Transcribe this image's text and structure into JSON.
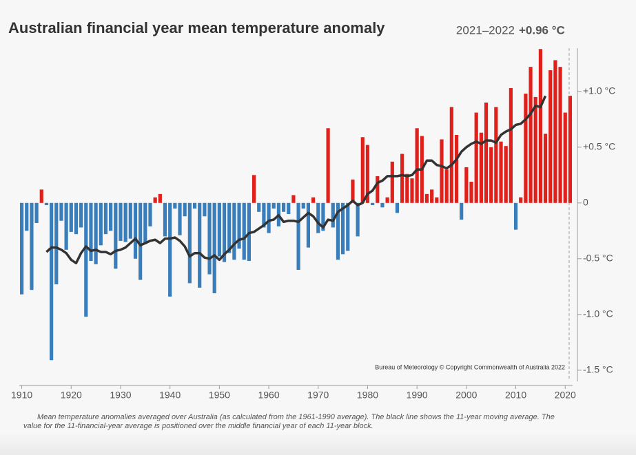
{
  "chart_data": {
    "type": "bar",
    "title": "Australian financial year mean temperature anomaly",
    "latest_period": "2021–2022",
    "latest_value_label": "+0.96 °C",
    "credit": "Bureau of Meteorology © Copyright Commonwealth of Australia 2022",
    "caption": "Mean temperature anomalies averaged over Australia (as calculated from the 1961-1990 average). The black line shows the 11-year moving average. The value for the 11-financial-year average is positioned over the middle financial year of each 11-year block.",
    "x": [
      1910,
      1911,
      1912,
      1913,
      1914,
      1915,
      1916,
      1917,
      1918,
      1919,
      1920,
      1921,
      1922,
      1923,
      1924,
      1925,
      1926,
      1927,
      1928,
      1929,
      1930,
      1931,
      1932,
      1933,
      1934,
      1935,
      1936,
      1937,
      1938,
      1939,
      1940,
      1941,
      1942,
      1943,
      1944,
      1945,
      1946,
      1947,
      1948,
      1949,
      1950,
      1951,
      1952,
      1953,
      1954,
      1955,
      1956,
      1957,
      1958,
      1959,
      1960,
      1961,
      1962,
      1963,
      1964,
      1965,
      1966,
      1967,
      1968,
      1969,
      1970,
      1971,
      1972,
      1973,
      1974,
      1975,
      1976,
      1977,
      1978,
      1979,
      1980,
      1981,
      1982,
      1983,
      1984,
      1985,
      1986,
      1987,
      1988,
      1989,
      1990,
      1991,
      1992,
      1993,
      1994,
      1995,
      1996,
      1997,
      1998,
      1999,
      2000,
      2001,
      2002,
      2003,
      2004,
      2005,
      2006,
      2007,
      2008,
      2009,
      2010,
      2011,
      2012,
      2013,
      2014,
      2015,
      2016,
      2017,
      2018,
      2019,
      2020,
      2021
    ],
    "values": [
      -0.82,
      -0.25,
      -0.78,
      -0.18,
      0.12,
      -0.02,
      -1.41,
      -0.73,
      -0.16,
      -0.42,
      -0.26,
      -0.28,
      -0.22,
      -1.02,
      -0.52,
      -0.55,
      -0.38,
      -0.28,
      -0.25,
      -0.59,
      -0.34,
      -0.35,
      -0.32,
      -0.5,
      -0.69,
      -0.37,
      -0.21,
      0.05,
      0.08,
      -0.3,
      -0.84,
      -0.05,
      -0.29,
      -0.12,
      -0.72,
      -0.05,
      -0.76,
      -0.12,
      -0.64,
      -0.81,
      -0.48,
      -0.53,
      -0.45,
      -0.51,
      -0.41,
      -0.51,
      -0.52,
      0.25,
      -0.08,
      -0.22,
      -0.27,
      -0.05,
      -0.21,
      -0.08,
      -0.1,
      0.07,
      -0.6,
      -0.05,
      -0.4,
      0.05,
      -0.27,
      -0.25,
      0.67,
      -0.22,
      -0.51,
      -0.46,
      -0.43,
      0.21,
      -0.3,
      0.59,
      0.52,
      -0.02,
      0.24,
      -0.04,
      0.05,
      0.37,
      -0.09,
      0.44,
      0.26,
      0.22,
      0.67,
      0.6,
      0.08,
      0.12,
      0.05,
      0.57,
      0.3,
      0.86,
      0.61,
      -0.15,
      0.32,
      0.19,
      0.81,
      0.63,
      0.9,
      0.5,
      0.86,
      0.55,
      0.51,
      1.03,
      -0.24,
      0.05,
      0.98,
      1.22,
      0.95,
      1.38,
      0.62,
      1.19,
      1.28,
      1.22,
      0.81,
      0.96
    ],
    "moving_average": [
      null,
      null,
      null,
      null,
      null,
      -0.44,
      -0.4,
      -0.4,
      -0.42,
      -0.45,
      -0.51,
      -0.54,
      -0.45,
      -0.39,
      -0.43,
      -0.42,
      -0.44,
      -0.44,
      -0.46,
      -0.43,
      -0.42,
      -0.4,
      -0.36,
      -0.32,
      -0.38,
      -0.36,
      -0.34,
      -0.33,
      -0.36,
      -0.32,
      -0.32,
      -0.31,
      -0.34,
      -0.39,
      -0.48,
      -0.45,
      -0.45,
      -0.49,
      -0.5,
      -0.47,
      -0.51,
      -0.46,
      -0.42,
      -0.37,
      -0.33,
      -0.32,
      -0.27,
      -0.26,
      -0.23,
      -0.2,
      -0.16,
      -0.15,
      -0.11,
      -0.17,
      -0.16,
      -0.16,
      -0.17,
      -0.13,
      -0.09,
      -0.12,
      -0.18,
      -0.22,
      -0.15,
      -0.16,
      -0.08,
      -0.05,
      -0.02,
      0.02,
      -0.02,
      0.0,
      0.08,
      0.11,
      0.18,
      0.2,
      0.24,
      0.24,
      0.24,
      0.25,
      0.24,
      0.25,
      0.3,
      0.3,
      0.38,
      0.38,
      0.34,
      0.33,
      0.31,
      0.34,
      0.39,
      0.46,
      0.5,
      0.53,
      0.55,
      0.53,
      0.56,
      0.56,
      0.54,
      0.61,
      0.64,
      0.66,
      0.7,
      0.71,
      0.75,
      0.8,
      0.87,
      0.86,
      0.96,
      null,
      null,
      null,
      null,
      null
    ],
    "positive_color": "#e0201b",
    "negative_color": "#3a7dbb",
    "line_color": "#333333",
    "xlim": [
      1909.5,
      2021.5
    ],
    "xticks": [
      1910,
      1920,
      1930,
      1940,
      1950,
      1960,
      1970,
      1980,
      1990,
      2000,
      2010,
      2020
    ],
    "ylim": [
      -1.6,
      1.4
    ],
    "yticks": [
      {
        "value": 1.0,
        "label": "+1.0 °C"
      },
      {
        "value": 0.5,
        "label": "+0.5 °C"
      },
      0,
      {
        "value": -0.5,
        "label": "-0.5 °C"
      },
      {
        "value": -1.0,
        "label": "-1.0 °C"
      },
      {
        "value": -1.5,
        "label": "-1.5 °C"
      }
    ],
    "grid": false
  }
}
